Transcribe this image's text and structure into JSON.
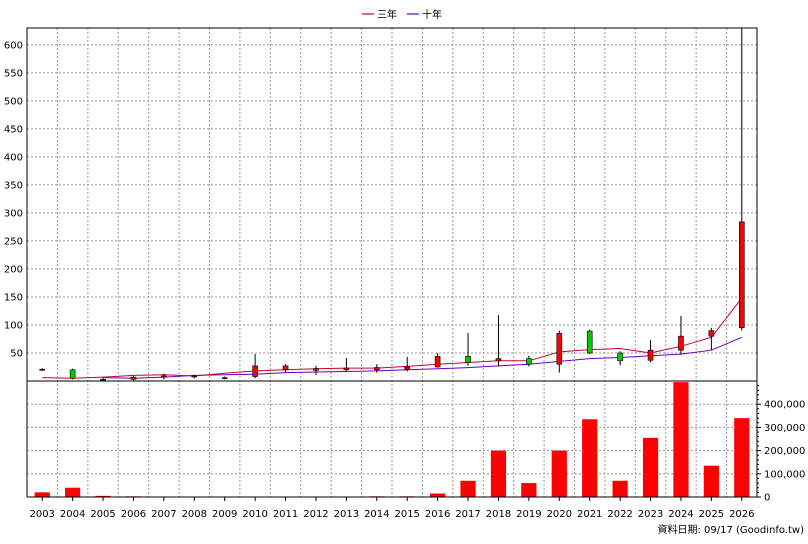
{
  "chart_data": [
    {
      "type": "candlestick",
      "legend": {
        "placement": "top-center",
        "entries": [
          {
            "name": "三年",
            "color": "#cc0033"
          },
          {
            "name": "十年",
            "color": "#6600cc"
          }
        ]
      },
      "ylim": [
        0,
        630
      ],
      "yticks": [
        50,
        100,
        150,
        200,
        250,
        300,
        350,
        400,
        450,
        500,
        550,
        600
      ],
      "grid": true,
      "x": [
        "2003",
        "2004",
        "2005",
        "2006",
        "2007",
        "2008",
        "2009",
        "2010",
        "2011",
        "2012",
        "2013",
        "2014",
        "2015",
        "2016",
        "2017",
        "2018",
        "2019",
        "2020",
        "2021",
        "2022",
        "2023",
        "2024",
        "2025",
        "2026"
      ],
      "candles": [
        {
          "o": 20,
          "h": 23,
          "l": 18,
          "c": 21
        },
        {
          "o": 20,
          "h": 22,
          "l": 3,
          "c": 5
        },
        {
          "o": 3,
          "h": 6,
          "l": 1,
          "c": 3
        },
        {
          "o": 3,
          "h": 9,
          "l": 1,
          "c": 7
        },
        {
          "o": 7,
          "h": 13,
          "l": 3,
          "c": 9
        },
        {
          "o": 8,
          "h": 11,
          "l": 5,
          "c": 9
        },
        {
          "o": 6,
          "h": 8,
          "l": 3,
          "c": 6
        },
        {
          "o": 8,
          "h": 48,
          "l": 5,
          "c": 27
        },
        {
          "o": 20,
          "h": 30,
          "l": 16,
          "c": 27
        },
        {
          "o": 19,
          "h": 27,
          "l": 11,
          "c": 22
        },
        {
          "o": 20,
          "h": 41,
          "l": 16,
          "c": 23
        },
        {
          "o": 20,
          "h": 30,
          "l": 15,
          "c": 24
        },
        {
          "o": 21,
          "h": 43,
          "l": 17,
          "c": 25
        },
        {
          "o": 25,
          "h": 50,
          "l": 24,
          "c": 44
        },
        {
          "o": 44,
          "h": 86,
          "l": 27,
          "c": 33
        },
        {
          "o": 36,
          "h": 118,
          "l": 26,
          "c": 40
        },
        {
          "o": 40,
          "h": 45,
          "l": 26,
          "c": 30
        },
        {
          "o": 30,
          "h": 90,
          "l": 15,
          "c": 85
        },
        {
          "o": 89,
          "h": 92,
          "l": 48,
          "c": 50
        },
        {
          "o": 50,
          "h": 53,
          "l": 28,
          "c": 36
        },
        {
          "o": 37,
          "h": 73,
          "l": 33,
          "c": 55
        },
        {
          "o": 55,
          "h": 116,
          "l": 47,
          "c": 80
        },
        {
          "o": 80,
          "h": 95,
          "l": 55,
          "c": 90
        },
        {
          "o": 95,
          "h": 630,
          "l": 90,
          "c": 284
        }
      ],
      "ma_3yr": [
        6,
        5,
        7,
        10,
        11,
        9,
        14,
        18,
        20,
        22,
        23,
        23,
        26,
        30,
        33,
        36,
        36,
        52,
        56,
        58,
        50,
        62,
        78,
        148
      ],
      "ma_10yr": [
        null,
        null,
        6,
        5,
        7,
        10,
        11,
        12,
        15,
        16,
        17,
        18,
        20,
        22,
        24,
        27,
        30,
        35,
        40,
        42,
        45,
        48,
        55,
        78
      ],
      "colors": {
        "up": "#ff0000",
        "down": "#00cc00"
      }
    },
    {
      "type": "bar",
      "x": [
        "2003",
        "2004",
        "2005",
        "2006",
        "2007",
        "2008",
        "2009",
        "2010",
        "2011",
        "2012",
        "2013",
        "2014",
        "2015",
        "2016",
        "2017",
        "2018",
        "2019",
        "2020",
        "2021",
        "2022",
        "2023",
        "2024",
        "2025",
        "2026"
      ],
      "values": [
        20000,
        40000,
        5000,
        3000,
        1000,
        1000,
        500,
        1000,
        1500,
        1000,
        1000,
        3000,
        3000,
        15000,
        70000,
        200000,
        60000,
        200000,
        335000,
        70000,
        255000,
        495000,
        135000,
        340000
      ],
      "ylim": [
        0,
        500000
      ],
      "yticks": [
        0,
        100000,
        200000,
        300000,
        400000
      ],
      "ytick_labels": [
        "0",
        "100,000",
        "200,000",
        "300,000",
        "400,000"
      ],
      "color": "#ff0000",
      "grid": true
    }
  ],
  "footer": {
    "source_text": "資料日期: 09/17  (Goodinfo.tw)"
  }
}
